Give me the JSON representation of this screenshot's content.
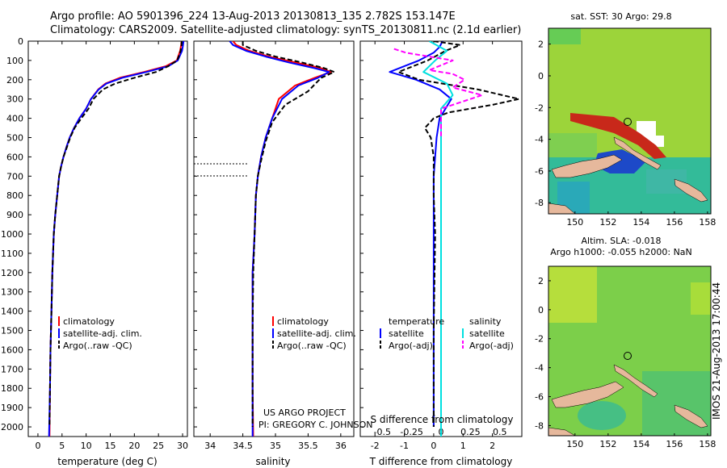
{
  "header": {
    "line1": "Argo profile: AO 5901396_224 13-Aug-2013 20130813_135 2.782S 153.147E",
    "line2": "Climatology: CARS2009. Satellite-adjusted climatology: synTS_20130811.nc (2.1d earlier)"
  },
  "stamp": "IMOS 21-Aug-2013 17:00:44",
  "colors": {
    "climatology": "#ff0000",
    "satellite": "#0000ff",
    "argo": "#000000",
    "sat_salinity": "#00e0e0",
    "argo_salinity": "#ff00ff"
  },
  "depth_ticks": [
    "0",
    "100",
    "200",
    "300",
    "400",
    "500",
    "600",
    "700",
    "800",
    "900",
    "1000",
    "1100",
    "1200",
    "1300",
    "1400",
    "1500",
    "1600",
    "1700",
    "1800",
    "1900",
    "2000"
  ],
  "temp_panel": {
    "xlabel": "temperature (deg C)",
    "xticks": [
      "0",
      "5",
      "10",
      "15",
      "20",
      "25",
      "30"
    ],
    "legend": [
      "climatology",
      "satellite-adj. clim.",
      "Argo(..raw -QC)"
    ]
  },
  "sal_panel": {
    "xlabel": "salinity",
    "xticks": [
      "34",
      "34.5",
      "35",
      "35.5",
      "36"
    ],
    "legend": [
      "climatology",
      "satellite-adj. clim.",
      "Argo(..raw -QC)"
    ],
    "credit1": "US ARGO PROJECT",
    "credit2": "PI: GREGORY C. JOHNSON"
  },
  "diff_panel": {
    "top_label": "S difference from climatology",
    "top_ticks": [
      "-0.5",
      "-0.25",
      "0",
      "0.25",
      "0.5"
    ],
    "xlabel": "T difference from climatology",
    "xticks": [
      "-2",
      "-1",
      "0",
      "1",
      "2"
    ],
    "legend_t_title": "temperature",
    "legend_t": [
      "satellite",
      "Argo(-adj)"
    ],
    "legend_s_title": "salinity",
    "legend_s": [
      "satellite",
      "Argo(-adj)"
    ]
  },
  "sst_map": {
    "title": "sat. SST: 30 Argo: 29.8",
    "xticks": [
      "150",
      "152",
      "154",
      "156",
      "158"
    ],
    "yticks": [
      "2",
      "0",
      "-2",
      "-4",
      "-6",
      "-8"
    ]
  },
  "sla_map": {
    "title1": "Altim. SLA: -0.018",
    "title2": "Argo h1000: -0.055 h2000: NaN",
    "xticks": [
      "150",
      "152",
      "154",
      "156",
      "158"
    ],
    "yticks": [
      "2",
      "0",
      "-2",
      "-4",
      "-6",
      "-8"
    ]
  },
  "chart_data": [
    {
      "type": "line",
      "title": "",
      "xlabel": "temperature (deg C)",
      "ylabel": "",
      "xlim": [
        -2,
        31
      ],
      "ylim": [
        2050,
        0
      ],
      "series": [
        {
          "name": "climatology",
          "x": [
            29.8,
            29.7,
            29.5,
            28.8,
            26.5,
            22,
            17,
            14,
            12.5,
            11,
            10,
            8.6,
            7.5,
            6.6,
            5.9,
            5.3,
            4.8,
            4.4,
            4.0,
            3.6,
            3.3,
            3.0,
            2.8,
            2.6,
            2.5,
            2.4
          ],
          "y": [
            0,
            20,
            50,
            100,
            130,
            160,
            190,
            220,
            250,
            300,
            350,
            400,
            450,
            500,
            550,
            600,
            650,
            700,
            800,
            900,
            1000,
            1200,
            1400,
            1600,
            1800,
            2050
          ]
        },
        {
          "name": "satellite-adj. clim.",
          "x": [
            30.2,
            30.1,
            29.9,
            29.0,
            27,
            22.5,
            17.5,
            14.2,
            12.6,
            11,
            10,
            8.6,
            7.5,
            6.6,
            5.9,
            5.3,
            4.8,
            4.4,
            4.0,
            3.6,
            3.3,
            3.0,
            2.8,
            2.6,
            2.5,
            2.3
          ],
          "y": [
            0,
            20,
            50,
            100,
            130,
            160,
            190,
            220,
            250,
            300,
            350,
            400,
            450,
            500,
            550,
            600,
            650,
            700,
            800,
            900,
            1000,
            1200,
            1400,
            1600,
            1800,
            2050
          ]
        },
        {
          "name": "Argo(..raw -QC)",
          "x": [
            29.8,
            29.8,
            29.6,
            28.9,
            27,
            24.5,
            20,
            16,
            13.5,
            11.5,
            10.5,
            9,
            7.6,
            6.7,
            6.0,
            5.3,
            4.8,
            4.4,
            4.0,
            3.6,
            3.3,
            3.0,
            2.8,
            2.6,
            2.5,
            2.4
          ],
          "y": [
            0,
            20,
            50,
            100,
            130,
            160,
            190,
            220,
            250,
            300,
            350,
            400,
            450,
            500,
            550,
            600,
            650,
            700,
            800,
            900,
            1000,
            1200,
            1400,
            1600,
            1800,
            2000
          ]
        }
      ]
    },
    {
      "type": "line",
      "title": "",
      "xlabel": "salinity",
      "ylabel": "",
      "xlim": [
        33.75,
        36.2
      ],
      "ylim": [
        2050,
        0
      ],
      "series": [
        {
          "name": "climatology",
          "x": [
            34.35,
            34.4,
            34.6,
            34.9,
            35.3,
            35.7,
            35.85,
            35.6,
            35.3,
            35.05,
            34.95,
            34.85,
            34.78,
            34.73,
            34.7,
            34.68,
            34.65,
            34.65,
            34.65,
            34.66
          ],
          "y": [
            0,
            20,
            50,
            80,
            110,
            140,
            160,
            190,
            230,
            300,
            400,
            500,
            600,
            700,
            800,
            1000,
            1200,
            1500,
            1800,
            2050
          ]
        },
        {
          "name": "satellite-adj. clim.",
          "x": [
            34.3,
            34.35,
            34.55,
            34.85,
            35.2,
            35.6,
            35.82,
            35.65,
            35.35,
            35.1,
            34.95,
            34.85,
            34.78,
            34.73,
            34.7,
            34.68,
            34.65,
            34.65,
            34.65,
            34.65
          ],
          "y": [
            0,
            20,
            50,
            80,
            110,
            140,
            160,
            190,
            230,
            300,
            400,
            500,
            600,
            700,
            800,
            1000,
            1200,
            1500,
            1800,
            2050
          ]
        },
        {
          "name": "Argo(..raw -QC)",
          "x": [
            34.5,
            34.5,
            34.7,
            35.0,
            35.4,
            35.75,
            35.9,
            35.7,
            35.5,
            35.15,
            34.95,
            34.85,
            34.78,
            34.73,
            34.7,
            34.68,
            34.66,
            34.65,
            34.65,
            34.65
          ],
          "y": [
            0,
            20,
            50,
            80,
            110,
            140,
            160,
            190,
            260,
            330,
            420,
            520,
            620,
            700,
            800,
            1000,
            1200,
            1500,
            1800,
            2000
          ]
        }
      ]
    },
    {
      "type": "line",
      "title": "",
      "xlabel": "T difference from climatology",
      "ylabel": "",
      "xlim": [
        -2.5,
        3
      ],
      "ylim": [
        2050,
        0
      ],
      "series": [
        {
          "name": "temperature satellite",
          "x": [
            0.3,
            0.2,
            0.0,
            -0.5,
            -1.5,
            -0.6,
            0.2,
            0.6,
            0.4,
            0.2,
            0.1,
            0.0,
            0.0,
            0.0,
            0.0
          ],
          "y": [
            0,
            30,
            60,
            100,
            160,
            200,
            250,
            300,
            350,
            400,
            500,
            700,
            1000,
            1500,
            2000
          ]
        },
        {
          "name": "temperature Argo(-adj)",
          "x": [
            0.0,
            0.9,
            0.4,
            -0.2,
            -1.2,
            -0.5,
            1.5,
            2.9,
            2.0,
            0.5,
            0.0,
            -0.3,
            -0.1,
            0.0,
            0.0,
            0.05,
            0.0,
            0.0
          ],
          "y": [
            0,
            20,
            50,
            100,
            160,
            200,
            250,
            300,
            330,
            370,
            400,
            450,
            500,
            600,
            800,
            1000,
            1500,
            2000
          ]
        },
        {
          "name": "salinity satellite",
          "x": [
            -0.1,
            0.05,
            -0.05,
            -0.15,
            0.05,
            0.1,
            0.0,
            0.0,
            0.0,
            0.0
          ],
          "y": [
            0,
            50,
            100,
            160,
            220,
            280,
            350,
            500,
            1000,
            2050
          ]
        },
        {
          "name": "salinity Argo(-adj)",
          "x": [
            -0.4,
            -0.3,
            0.1,
            -0.1,
            0.1,
            0.2,
            0.1,
            0.35,
            0.0,
            0.0
          ],
          "y": [
            40,
            60,
            100,
            150,
            170,
            200,
            240,
            280,
            350,
            500
          ]
        }
      ]
    }
  ]
}
